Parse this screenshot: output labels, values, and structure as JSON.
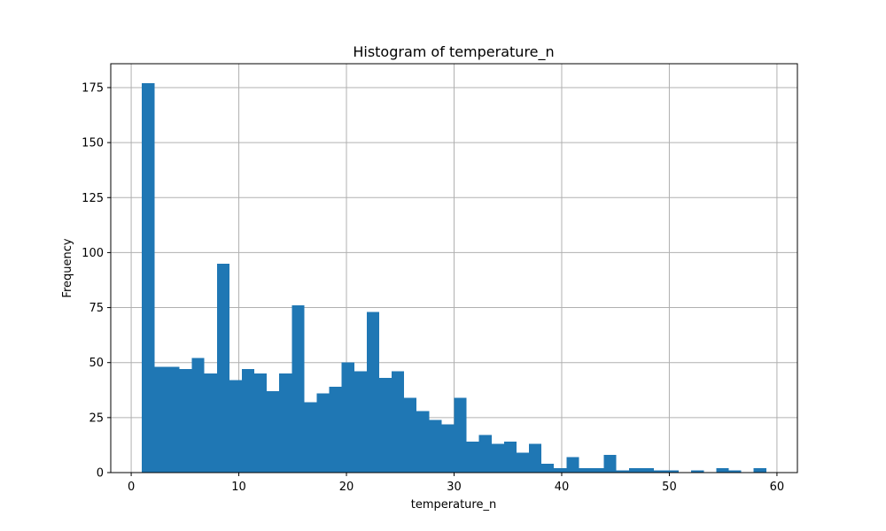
{
  "chart_data": {
    "type": "bar",
    "title": "Histogram of temperature_n",
    "xlabel": "temperature_n",
    "ylabel": "Frequency",
    "xlim": [
      -1.9,
      61.9
    ],
    "ylim": [
      0,
      185.85
    ],
    "xticks": [
      0,
      10,
      20,
      30,
      40,
      50,
      60
    ],
    "yticks": [
      0,
      25,
      50,
      75,
      100,
      125,
      150,
      175
    ],
    "grid": true,
    "bar_color": "#1f77b4",
    "bin_start": 1,
    "bin_width": 1.16,
    "values": [
      177,
      48,
      48,
      47,
      52,
      45,
      95,
      42,
      47,
      45,
      37,
      45,
      76,
      32,
      36,
      39,
      50,
      46,
      73,
      43,
      46,
      34,
      28,
      24,
      22,
      34,
      14,
      17,
      13,
      14,
      9,
      13,
      4,
      2,
      7,
      2,
      2,
      8,
      1,
      2,
      2,
      1,
      1,
      0,
      1,
      0,
      2,
      1,
      0,
      2
    ]
  }
}
